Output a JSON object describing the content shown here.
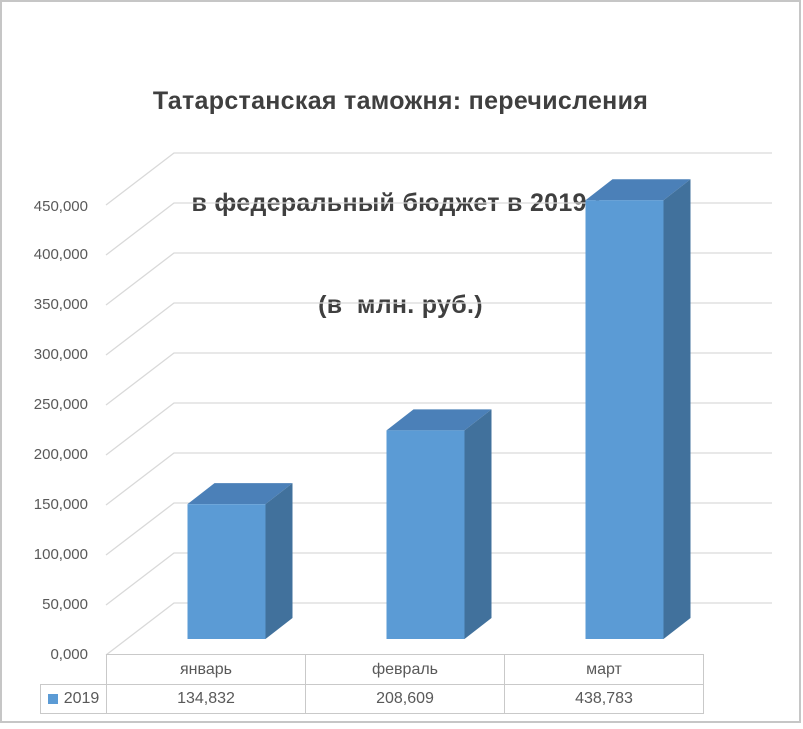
{
  "window": {
    "background": "#ffffff",
    "frame_border_color": "#c6c6c6"
  },
  "title": {
    "line1": "Татарстанская таможня: перечисления",
    "line2": "в федеральный бюджет в 2019 г.",
    "line3": "(в  млн. руб.)"
  },
  "colors": {
    "bar_front": "#5b9bd5",
    "bar_top": "#4b80b8",
    "bar_side": "#41719c",
    "grid": "#d9d9d9",
    "table_border": "#c9c9c9",
    "tick_text": "#595959",
    "title_text": "#3f3f3f"
  },
  "chart_data": {
    "type": "bar",
    "style": "3d-column",
    "title": "Татарстанская таможня: перечисления в федеральный бюджет в 2019 г. (в млн. руб.)",
    "categories": [
      "январь",
      "февраль",
      "март"
    ],
    "series": [
      {
        "name": "2019",
        "values": [
          134.832,
          208.609,
          438.783
        ],
        "value_labels": [
          "134,832",
          "208,609",
          "438,783"
        ],
        "color": "#5b9bd5"
      }
    ],
    "xlabel": "",
    "ylabel": "",
    "units": "млн. руб.",
    "ylim": [
      0,
      450
    ],
    "ytick_step": 50,
    "ytick_values": [
      0,
      50,
      100,
      150,
      200,
      250,
      300,
      350,
      400,
      450
    ],
    "ytick_labels": [
      "0,000",
      "50,000",
      "100,000",
      "150,000",
      "200,000",
      "250,000",
      "300,000",
      "350,000",
      "400,000",
      "450,000"
    ],
    "grid": true,
    "legend": {
      "entries": [
        "2019"
      ],
      "position": "bottom-left-data-table"
    }
  }
}
